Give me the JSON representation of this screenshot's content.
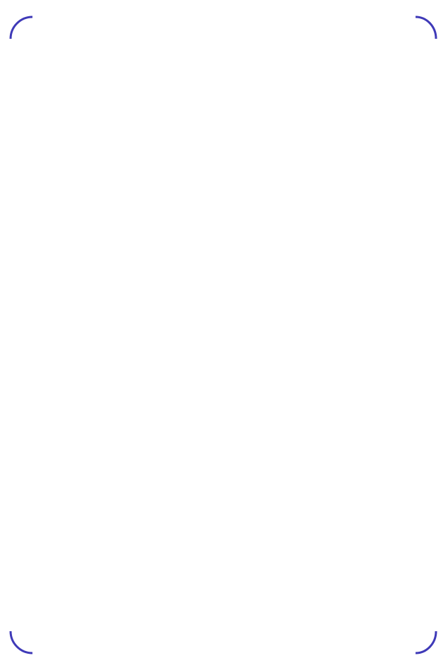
{
  "frame": {
    "background": "#ffffff",
    "corner_color": "#3f3ab8",
    "mid_color": "#f7f73a",
    "edge_gray": "#8a8a7a"
  }
}
